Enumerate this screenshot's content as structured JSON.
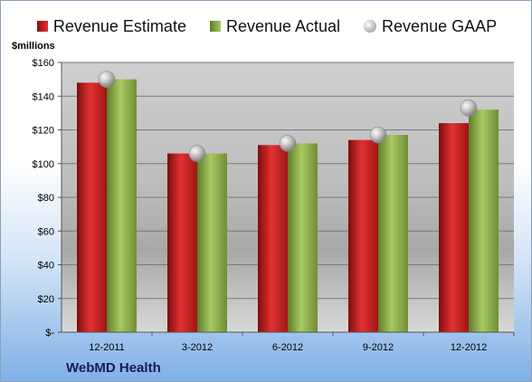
{
  "chart_data": {
    "type": "bar",
    "categories": [
      "12-2011",
      "3-2012",
      "6-2012",
      "9-2012",
      "12-2012"
    ],
    "series": [
      {
        "name": "Revenue Estimate",
        "values": [
          148,
          106,
          111,
          114,
          124
        ]
      },
      {
        "name": "Revenue Actual",
        "values": [
          150,
          106,
          112,
          117,
          132
        ]
      },
      {
        "name": "Revenue GAAP",
        "values": [
          150,
          106,
          112,
          117,
          133
        ],
        "marker": "circle"
      }
    ],
    "ylabel": "$millions",
    "ylim": [
      0,
      160
    ],
    "yticks": [
      0,
      20,
      40,
      60,
      80,
      100,
      120,
      140,
      160
    ],
    "ytick_labels": [
      "$-",
      "$20",
      "$40",
      "$60",
      "$80",
      "$100",
      "$120",
      "$140",
      "$160"
    ],
    "grid": true,
    "legend_position": "top"
  },
  "footer": {
    "company": "WebMD Health"
  },
  "colors": {
    "estimate": "#c42222",
    "actual": "#8fb048",
    "gaap": "#b8b8b8"
  }
}
